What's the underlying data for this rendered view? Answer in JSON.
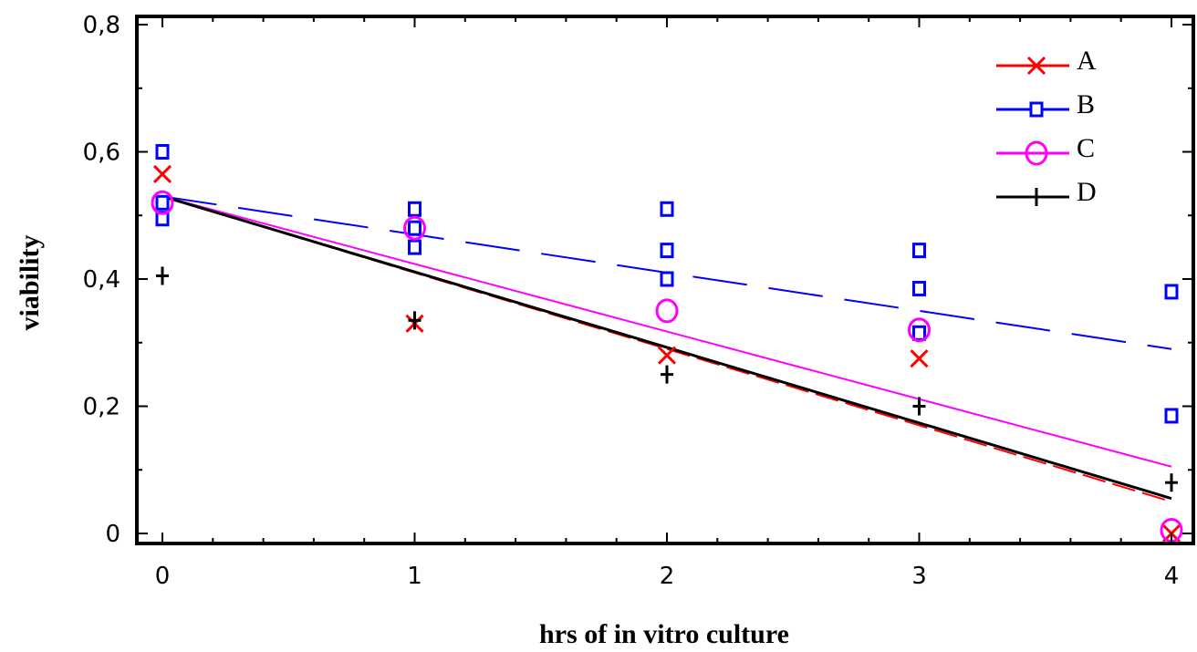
{
  "chart_data": {
    "type": "scatter",
    "xlabel": "hrs of in vitro culture",
    "ylabel": "viability",
    "xlim": [
      -0.1,
      4.1
    ],
    "ylim": [
      -0.01,
      0.82
    ],
    "x_ticks": [
      "0",
      "1",
      "2",
      "3",
      "4"
    ],
    "y_ticks": [
      "0",
      "0,2",
      "0,4",
      "0,6",
      "0,8"
    ],
    "legend_position": "top-right",
    "grid": false,
    "series": [
      {
        "name": "A",
        "color": "#ff0000",
        "marker": "x",
        "points": [
          [
            0,
            0.565
          ],
          [
            1,
            0.33
          ],
          [
            2,
            0.28
          ],
          [
            3,
            0.275
          ],
          [
            4,
            0.0
          ]
        ],
        "fit": {
          "x": [
            0,
            4
          ],
          "y": [
            0.53,
            0.05
          ],
          "dash": "dashed"
        }
      },
      {
        "name": "B",
        "color": "#0000ff",
        "marker": "square",
        "points": [
          [
            0,
            0.6
          ],
          [
            0,
            0.52
          ],
          [
            0,
            0.495
          ],
          [
            1,
            0.51
          ],
          [
            1,
            0.48
          ],
          [
            1,
            0.45
          ],
          [
            2,
            0.51
          ],
          [
            2,
            0.445
          ],
          [
            2,
            0.4
          ],
          [
            3,
            0.445
          ],
          [
            3,
            0.385
          ],
          [
            3,
            0.315
          ],
          [
            4,
            0.38
          ],
          [
            4,
            0.185
          ]
        ],
        "fit": {
          "x": [
            0,
            4
          ],
          "y": [
            0.53,
            0.29
          ],
          "dash": "long-dash"
        }
      },
      {
        "name": "C",
        "color": "#ff00ff",
        "marker": "circle",
        "points": [
          [
            0,
            0.52
          ],
          [
            1,
            0.48
          ],
          [
            2,
            0.35
          ],
          [
            3,
            0.32
          ],
          [
            4,
            0.005
          ]
        ],
        "fit": {
          "x": [
            0,
            4
          ],
          "y": [
            0.53,
            0.105
          ],
          "dash": "solid"
        }
      },
      {
        "name": "D",
        "color": "#000000",
        "marker": "plus",
        "points": [
          [
            0,
            0.405
          ],
          [
            1,
            0.335
          ],
          [
            2,
            0.25
          ],
          [
            3,
            0.2
          ],
          [
            4,
            0.08
          ]
        ],
        "fit": {
          "x": [
            0,
            4
          ],
          "y": [
            0.53,
            0.055
          ],
          "dash": "solid"
        }
      }
    ]
  }
}
